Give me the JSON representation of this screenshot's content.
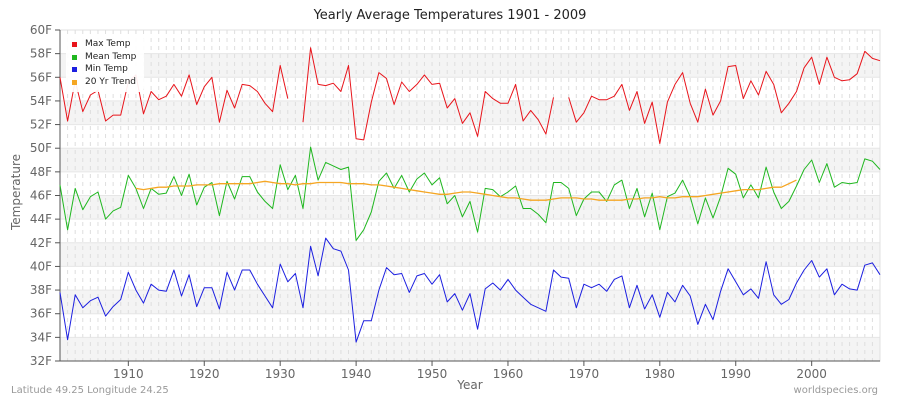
{
  "chart_data": {
    "type": "line",
    "title": "Yearly Average Temperatures 1901 - 2009",
    "xlabel": "Year",
    "ylabel": "Temperature",
    "x_start": 1901,
    "x_end": 2009,
    "xticks": [
      1910,
      1920,
      1930,
      1940,
      1950,
      1960,
      1970,
      1980,
      1990,
      2000
    ],
    "xtick_labels": [
      "1910",
      "1920",
      "1930",
      "1940",
      "1950",
      "1960",
      "1970",
      "1980",
      "1990",
      "2000"
    ],
    "yticks": [
      32,
      34,
      36,
      38,
      40,
      42,
      44,
      46,
      48,
      50,
      52,
      54,
      56,
      58,
      60
    ],
    "ytick_labels": [
      "32F",
      "34F",
      "36F",
      "38F",
      "40F",
      "42F",
      "44F",
      "46F",
      "48F",
      "50F",
      "52F",
      "54F",
      "56F",
      "58F",
      "60F"
    ],
    "ylim": [
      32,
      60
    ],
    "grid": true,
    "legend_position": "top-left",
    "series": [
      {
        "name": "Max Temp",
        "color": "#e8141b",
        "start_year": 1901,
        "values": [
          56.0,
          52.3,
          55.7,
          53.1,
          54.5,
          54.9,
          52.3,
          52.8,
          52.8,
          55.6,
          56.2,
          52.9,
          54.8,
          54.1,
          54.4,
          55.4,
          54.4,
          56.2,
          53.7,
          55.2,
          56.0,
          52.2,
          54.9,
          53.4,
          55.4,
          55.3,
          54.8,
          53.8,
          53.1,
          57.0,
          54.2,
          null,
          52.2,
          58.5,
          55.4,
          55.3,
          55.5,
          54.8,
          57.0,
          50.8,
          50.7,
          53.9,
          56.4,
          55.9,
          53.7,
          55.6,
          54.8,
          55.4,
          56.2,
          55.4,
          55.5,
          53.4,
          54.2,
          52.1,
          53.0,
          51.0,
          54.8,
          54.2,
          53.8,
          53.8,
          55.4,
          52.3,
          53.2,
          52.4,
          51.2,
          54.3,
          null,
          54.3,
          52.2,
          53.0,
          54.4,
          54.1,
          54.1,
          54.4,
          55.4,
          53.2,
          54.8,
          52.1,
          53.9,
          50.4,
          53.9,
          55.4,
          56.4,
          53.8,
          52.2,
          55.0,
          52.8,
          54.0,
          56.9,
          57.0,
          54.2,
          55.7,
          54.5,
          56.5,
          55.4,
          53.0,
          53.8,
          54.8,
          56.8,
          57.7,
          55.4,
          57.7,
          56.0,
          55.7,
          55.8,
          56.3,
          58.2,
          57.6,
          57.4
        ]
      },
      {
        "name": "Mean Temp",
        "color": "#1fb71f",
        "start_year": 1901,
        "values": [
          46.9,
          43.1,
          46.6,
          44.8,
          45.9,
          46.3,
          44.0,
          44.7,
          45.0,
          47.7,
          46.6,
          44.9,
          46.6,
          46.1,
          46.2,
          47.6,
          46.0,
          47.8,
          45.2,
          46.7,
          47.1,
          44.3,
          47.2,
          45.7,
          47.6,
          47.6,
          46.3,
          45.5,
          44.9,
          48.6,
          46.5,
          47.7,
          44.9,
          50.1,
          47.3,
          48.8,
          48.5,
          48.2,
          48.4,
          42.2,
          43.1,
          44.6,
          47.2,
          47.9,
          46.6,
          47.7,
          46.3,
          47.4,
          47.9,
          46.9,
          47.5,
          45.3,
          46.0,
          44.2,
          45.5,
          42.9,
          46.6,
          46.5,
          45.9,
          46.3,
          46.8,
          44.9,
          44.9,
          44.4,
          43.7,
          47.1,
          47.1,
          46.6,
          44.3,
          45.7,
          46.3,
          46.3,
          45.5,
          46.9,
          47.3,
          44.9,
          46.6,
          44.2,
          46.2,
          43.1,
          45.9,
          46.2,
          47.3,
          45.9,
          43.6,
          45.8,
          44.1,
          45.9,
          48.3,
          47.8,
          45.8,
          46.9,
          45.8,
          48.4,
          46.3,
          44.9,
          45.5,
          46.8,
          48.2,
          49.0,
          47.1,
          48.7,
          46.7,
          47.1,
          47.0,
          47.1,
          49.1,
          48.9,
          48.2
        ]
      },
      {
        "name": "Min Temp",
        "color": "#1c1fe0",
        "start_year": 1901,
        "values": [
          37.8,
          33.8,
          37.6,
          36.5,
          37.1,
          37.4,
          35.8,
          36.6,
          37.2,
          39.5,
          38.0,
          36.9,
          38.5,
          38.0,
          37.9,
          39.7,
          37.5,
          39.3,
          36.6,
          38.2,
          38.2,
          36.4,
          39.5,
          38.0,
          39.7,
          39.7,
          38.5,
          37.5,
          36.5,
          40.2,
          38.7,
          39.4,
          36.5,
          41.7,
          39.2,
          42.4,
          41.5,
          41.3,
          39.7,
          33.6,
          35.4,
          35.4,
          38.0,
          39.9,
          39.3,
          39.4,
          37.8,
          39.2,
          39.4,
          38.5,
          39.3,
          37.0,
          37.7,
          36.3,
          37.7,
          34.7,
          38.1,
          38.6,
          38.0,
          38.9,
          38.0,
          37.4,
          36.8,
          36.5,
          36.2,
          39.7,
          39.1,
          39.0,
          36.5,
          38.5,
          38.2,
          38.5,
          37.9,
          38.9,
          39.2,
          36.5,
          38.4,
          36.4,
          37.6,
          35.7,
          37.8,
          37.0,
          38.4,
          37.5,
          35.1,
          36.8,
          35.5,
          37.9,
          39.8,
          38.7,
          37.6,
          38.1,
          37.3,
          40.4,
          37.6,
          36.8,
          37.2,
          38.6,
          39.7,
          40.5,
          39.1,
          39.8,
          37.6,
          38.5,
          38.1,
          38.0,
          40.1,
          40.3,
          39.3
        ]
      },
      {
        "name": "20 Yr Trend",
        "color": "#f5a623",
        "start_year": 1911,
        "values": [
          46.6,
          46.5,
          46.6,
          46.7,
          46.7,
          46.8,
          46.8,
          46.8,
          46.9,
          46.9,
          46.9,
          47.0,
          47.0,
          47.0,
          47.0,
          47.0,
          47.1,
          47.2,
          47.1,
          47.0,
          47.0,
          46.9,
          47.0,
          47.0,
          47.1,
          47.1,
          47.1,
          47.1,
          47.0,
          47.0,
          47.0,
          46.9,
          46.9,
          46.8,
          46.7,
          46.6,
          46.5,
          46.4,
          46.3,
          46.2,
          46.1,
          46.1,
          46.2,
          46.3,
          46.3,
          46.2,
          46.1,
          46.0,
          45.9,
          45.8,
          45.8,
          45.7,
          45.6,
          45.6,
          45.6,
          45.7,
          45.8,
          45.8,
          45.8,
          45.7,
          45.7,
          45.6,
          45.6,
          45.6,
          45.6,
          45.7,
          45.7,
          45.8,
          45.8,
          45.9,
          45.8,
          45.8,
          45.9,
          45.9,
          45.9,
          46.0,
          46.1,
          46.2,
          46.3,
          46.4,
          46.5,
          46.5,
          46.5,
          46.6,
          46.7,
          46.7,
          47.0,
          47.3
        ]
      }
    ]
  },
  "title": "Yearly Average Temperatures 1901 - 2009",
  "xlabel": "Year",
  "ylabel": "Temperature",
  "legend": [
    {
      "label": "Max Temp",
      "color": "#e8141b"
    },
    {
      "label": "Mean Temp",
      "color": "#1fb71f"
    },
    {
      "label": "Min Temp",
      "color": "#1c1fe0"
    },
    {
      "label": "20 Yr Trend",
      "color": "#f5a623"
    }
  ],
  "footer": {
    "location": "Latitude 49.25 Longitude 24.25",
    "source": "worldspecies.org"
  }
}
